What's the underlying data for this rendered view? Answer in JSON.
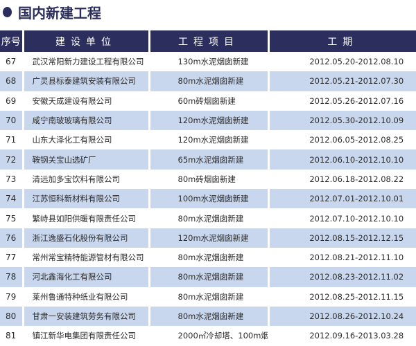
{
  "title": "国内新建工程",
  "colors": {
    "header_bg": "#2c2f5e",
    "row_alt_bg": "#c9d7ee",
    "title": "#2b2d5c"
  },
  "table": {
    "headers": [
      "序号",
      "建设单位",
      "工程项目",
      "工期"
    ],
    "rows": [
      {
        "no": "67",
        "unit": "武汉常阳新力建设工程有限公司",
        "project": "130m水泥烟囱新建",
        "period": "2012.05.20-2012.08.10"
      },
      {
        "no": "68",
        "unit": "广灵县标泰建筑安装有限公司",
        "project": "80m水泥烟囱新建",
        "period": "2012.05.21-2012.07.30"
      },
      {
        "no": "69",
        "unit": "安徽天成建设有限公司",
        "project": "60m砖烟囱新建",
        "period": "2012.05.26-2012.07.16"
      },
      {
        "no": "70",
        "unit": "咸宁南玻玻璃有限公司",
        "project": "120m水泥烟囱新建",
        "period": "2012.05.30-2012.10.09"
      },
      {
        "no": "71",
        "unit": "山东大泽化工有限公司",
        "project": "120m水泥烟囱新建",
        "period": "2012.06.05-2012.08.25"
      },
      {
        "no": "72",
        "unit": "鞍钢关宝山选矿厂",
        "project": "65m水泥烟囱新建",
        "period": "2012.06.10-2012.10.10"
      },
      {
        "no": "73",
        "unit": "清远加多宝饮料有限公司",
        "project": "80m砖烟囱新建",
        "period": "2012.06.18-2012.08.22"
      },
      {
        "no": "74",
        "unit": "江苏恒科新材料有限公司",
        "project": "100m水泥烟囱新建",
        "period": "2012.07.01-2012.10.01"
      },
      {
        "no": "75",
        "unit": "繁峙县如阳供暖有限责任公司",
        "project": "80m水泥烟囱新建",
        "period": "2012.07.10-2012.10.10"
      },
      {
        "no": "76",
        "unit": "浙江逸盛石化股份有限公司",
        "project": "120m水泥烟囱新建",
        "period": "2012.08.15-2012.12.15"
      },
      {
        "no": "77",
        "unit": "常州常宝精特能源管材有限公司",
        "project": "80m水泥烟囱新建",
        "period": "2012.08.21-2012.11.10"
      },
      {
        "no": "78",
        "unit": "河北鑫海化工有限公司",
        "project": "80m水泥烟囱新建",
        "period": "2012.08.23-2012.11.02"
      },
      {
        "no": "79",
        "unit": "莱州鲁通特种纸业有限公司",
        "project": "80m水泥烟囱新建",
        "period": "2012.08.25-2012.11.15"
      },
      {
        "no": "80",
        "unit": "甘肃一安装建筑劳务有限公司",
        "project": "80m水泥烟囱新建",
        "period": "2012.08.26-2012.10.24"
      },
      {
        "no": "81",
        "unit": "镇江新华电集团有限责任公司",
        "project": "2000㎡冷却塔、100m烟囱新建",
        "period": "2012.09.16-2013.03.28"
      }
    ]
  }
}
